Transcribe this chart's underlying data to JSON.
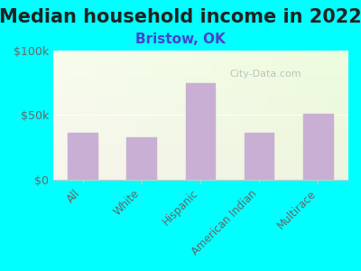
{
  "title": "Median household income in 2022",
  "subtitle": "Bristow, OK",
  "categories": [
    "All",
    "White",
    "Hispanic",
    "American Indian",
    "Multirace"
  ],
  "values": [
    36000,
    33000,
    75000,
    36000,
    51000
  ],
  "bar_color": "#c9afd4",
  "background_color": "#00ffff",
  "ylim": [
    0,
    100000
  ],
  "ytick_labels": [
    "$0",
    "$50k",
    "$100k"
  ],
  "ytick_vals": [
    0,
    50000,
    100000
  ],
  "title_fontsize": 15,
  "subtitle_fontsize": 11,
  "subtitle_color": "#4444cc",
  "tick_label_color": "#666666",
  "watermark": "City-Data.com"
}
